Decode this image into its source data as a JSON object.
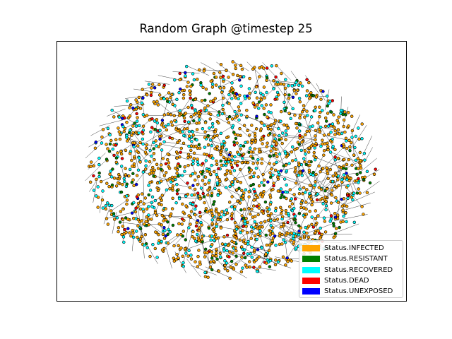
{
  "figure": {
    "title": "Random Graph @timestep 25"
  },
  "legend": {
    "items": [
      {
        "label": "Status.INFECTED",
        "color": "#ffa500"
      },
      {
        "label": "Status.RESISTANT",
        "color": "#008000"
      },
      {
        "label": "Status.RECOVERED",
        "color": "#00ffff"
      },
      {
        "label": "Status.DEAD",
        "color": "#ff0000"
      },
      {
        "label": "Status.UNEXPOSED",
        "color": "#0000ff"
      }
    ]
  },
  "graph": {
    "node_count": 2000,
    "status_shares": {
      "INFECTED": 0.62,
      "RECOVERED": 0.24,
      "RESISTANT": 0.07,
      "DEAD": 0.05,
      "UNEXPOSED": 0.02
    },
    "edge_color": "#000000",
    "node_outline": "#000000"
  }
}
